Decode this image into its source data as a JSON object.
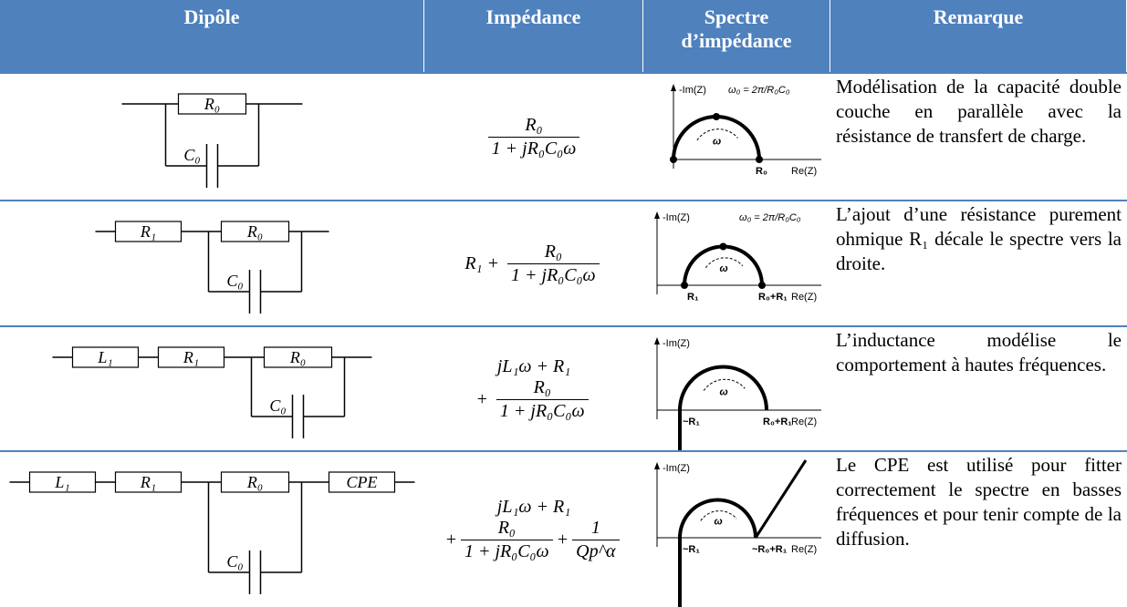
{
  "table": {
    "header": [
      "Dipôle",
      "Impédance",
      "Spectre d’impédance",
      "Remarque"
    ],
    "rows": [
      {
        "circuit": {
          "parallel": [
            "R₀",
            "C₀"
          ]
        },
        "impedance": [
          [
            {
              "num": "R₀",
              "den": "1 + jR₀C₀ω"
            }
          ]
        ],
        "spectrum": {
          "y_axis": "-Im(Z)",
          "omega0": "ω₀ = 2π/R₀C₀",
          "omega": "ω",
          "end": "R₀",
          "x_axis": "Re(Z)"
        },
        "remark": "Modélisation de la capacité double couche en parallèle avec la résistance de transfert de charge."
      },
      {
        "circuit": {
          "series": [
            "R₁"
          ],
          "parallel": [
            "R₀",
            "C₀"
          ]
        },
        "impedance": [
          [
            "R₁ + ",
            {
              "num": "R₀",
              "den": "1 + jR₀C₀ω"
            }
          ]
        ],
        "spectrum": {
          "y_axis": "-Im(Z)",
          "omega0": "ω₀ = 2π/R₀C₀",
          "omega": "ω",
          "start": "R₁",
          "end": "R₀+R₁",
          "x_axis": "Re(Z)"
        },
        "remark": "L’ajout d’une résistance purement ohmique R₁ décale le spectre vers la droite."
      },
      {
        "circuit": {
          "series": [
            "L₁",
            "R₁"
          ],
          "parallel": [
            "R₀",
            "C₀"
          ]
        },
        "impedance": [
          [
            "jL₁ω + R₁"
          ],
          [
            "+ ",
            {
              "num": "R₀",
              "den": "1 + jR₀C₀ω"
            }
          ]
        ],
        "spectrum": {
          "y_axis": "-Im(Z)",
          "omega": "ω",
          "start": "~R₁",
          "end": "R₀+R₁",
          "x_axis": "Re(Z)"
        },
        "remark": "L’inductance modélise le comportement à hautes fréquences."
      },
      {
        "circuit": {
          "series": [
            "L₁",
            "R₁"
          ],
          "parallel": [
            "R₀",
            "C₀"
          ],
          "tail": [
            "CPE"
          ]
        },
        "impedance": [
          [
            "jL₁ω + R₁"
          ],
          [
            "+",
            {
              "num": "R₀",
              "den": "1 + jR₀C₀ω"
            },
            "+",
            {
              "num": "1",
              "den": "Qp^α"
            }
          ]
        ],
        "spectrum": {
          "y_axis": "-Im(Z)",
          "omega": "ω",
          "start": "~R₁",
          "end": "~R₀+R₁",
          "x_axis": "Re(Z)"
        },
        "remark": "Le CPE est utilisé pour fitter correctement le spectre en basses fréquences et pour tenir compte de la diffusion."
      }
    ]
  }
}
